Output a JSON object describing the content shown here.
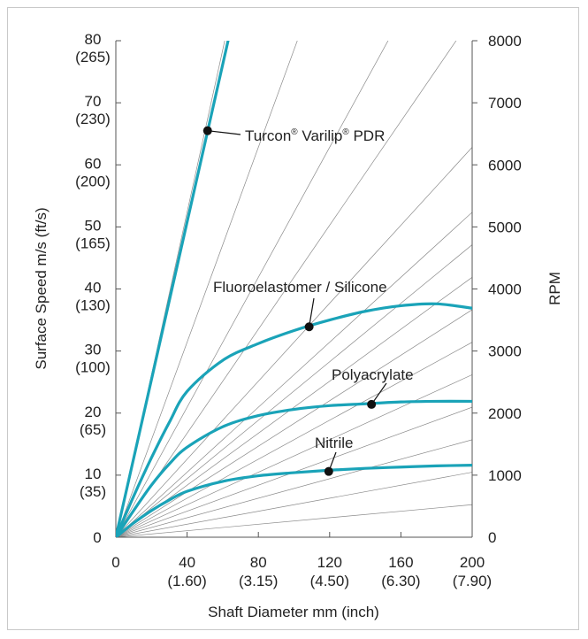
{
  "chart_data": {
    "type": "line",
    "title": "",
    "xlabel": "Shaft Diameter mm (inch)",
    "ylabel_left": "Surface Speed m/s (ft/s)",
    "ylabel_right": "RPM",
    "xlim": [
      0,
      200
    ],
    "ylim": [
      0,
      80
    ],
    "ylim_right": [
      0,
      8000
    ],
    "x_ticks": [
      {
        "value": 0,
        "label": "0",
        "sub": ""
      },
      {
        "value": 40,
        "label": "40",
        "sub": "(1.60)"
      },
      {
        "value": 80,
        "label": "80",
        "sub": "(3.15)"
      },
      {
        "value": 120,
        "label": "120",
        "sub": "(4.50)"
      },
      {
        "value": 160,
        "label": "160",
        "sub": "(6.30)"
      },
      {
        "value": 200,
        "label": "200",
        "sub": "(7.90)"
      }
    ],
    "y_ticks_left": [
      {
        "value": 0,
        "label": "0",
        "sub": ""
      },
      {
        "value": 10,
        "label": "10",
        "sub": "(35)"
      },
      {
        "value": 20,
        "label": "20",
        "sub": "(65)"
      },
      {
        "value": 30,
        "label": "30",
        "sub": "(100)"
      },
      {
        "value": 40,
        "label": "40",
        "sub": "(130)"
      },
      {
        "value": 50,
        "label": "50",
        "sub": "(165)"
      },
      {
        "value": 60,
        "label": "60",
        "sub": "(200)"
      },
      {
        "value": 70,
        "label": "70",
        "sub": "(230)"
      },
      {
        "value": 80,
        "label": "80",
        "sub": "(265)"
      }
    ],
    "y_ticks_right": [
      "0",
      "1000",
      "2000",
      "3000",
      "4000",
      "5000",
      "6000",
      "7000",
      "8000"
    ],
    "rpm_lines": [
      500,
      1000,
      1500,
      2000,
      2500,
      3000,
      3500,
      4000,
      4500,
      5000,
      6000,
      8000,
      10000,
      15000,
      25000
    ],
    "series": [
      {
        "name": "Turcon® Varilip® PDR",
        "color": "#1aa3b8",
        "x": [
          0,
          63
        ],
        "y": [
          0,
          80
        ],
        "marker": [
          51.5,
          65.5
        ]
      },
      {
        "name": "Fluoroelastomer / Silicone",
        "color": "#1aa3b8",
        "x": [
          0,
          10,
          20,
          30,
          40,
          60,
          80,
          100,
          120,
          140,
          160,
          180,
          200
        ],
        "y": [
          0,
          6.6,
          12.8,
          18.5,
          23.5,
          28.5,
          31.2,
          33.3,
          35.0,
          36.4,
          37.3,
          37.6,
          36.9
        ],
        "marker": [
          108.5,
          33.9
        ]
      },
      {
        "name": "Polyacrylate",
        "color": "#1aa3b8",
        "x": [
          0,
          10,
          20,
          30,
          40,
          60,
          80,
          100,
          120,
          140,
          160,
          180,
          200
        ],
        "y": [
          0,
          4.3,
          8.4,
          11.8,
          14.5,
          17.8,
          19.6,
          20.6,
          21.2,
          21.5,
          21.8,
          21.9,
          21.9
        ],
        "marker": [
          143.5,
          21.4
        ]
      },
      {
        "name": "Nitrile",
        "color": "#1aa3b8",
        "x": [
          0,
          10,
          20,
          30,
          40,
          60,
          80,
          100,
          120,
          140,
          160,
          180,
          200
        ],
        "y": [
          0,
          2.3,
          4.3,
          6.0,
          7.4,
          9.0,
          9.9,
          10.4,
          10.8,
          11.1,
          11.3,
          11.5,
          11.6
        ],
        "marker": [
          119.5,
          10.6
        ]
      }
    ],
    "annotations": [
      {
        "text_html": "Turcon® Varilip® PDR",
        "parts": [
          "Turcon",
          "®",
          " Varilip",
          "®",
          " PDR"
        ]
      },
      {
        "text": "Fluoroelastomer / Silicone"
      },
      {
        "text": "Polyacrylate"
      },
      {
        "text": "Nitrile"
      }
    ],
    "colors": {
      "curve": "#1aa3b8",
      "grid": "#8a8a8a",
      "axis": "#555555",
      "frame": "#c9c9c9"
    }
  }
}
